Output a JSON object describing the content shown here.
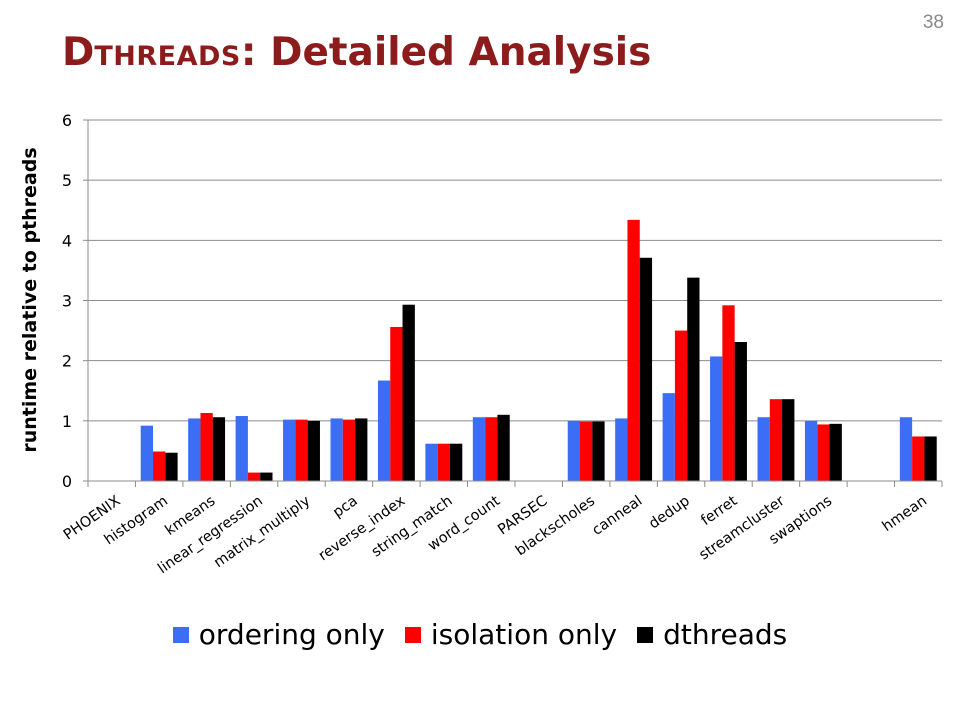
{
  "slide": {
    "number": "38",
    "title_first": "D",
    "title_smallcaps": "THREADS",
    "title_rest": ": Detailed Analysis"
  },
  "chart_data": {
    "type": "bar",
    "title": "",
    "xlabel": "",
    "ylabel": "runtime relative to pthreads",
    "ylim": [
      0,
      6
    ],
    "yticks": [
      0,
      1,
      2,
      3,
      4,
      5,
      6
    ],
    "grid": true,
    "legend_position": "bottom",
    "categories": [
      "PHOENIX",
      "histogram",
      "kmeans",
      "linear_regression",
      "matrix_multiply",
      "pca",
      "reverse_index",
      "string_match",
      "word_count",
      "PARSEC",
      "blackscholes",
      "canneal",
      "dedup",
      "ferret",
      "streamcluster",
      "swaptions",
      "",
      "hmean"
    ],
    "series": [
      {
        "name": "ordering only",
        "color": "#3b6ef5",
        "values": [
          null,
          0.92,
          1.04,
          1.08,
          1.02,
          1.04,
          1.67,
          0.62,
          1.06,
          null,
          1.0,
          1.04,
          1.46,
          2.07,
          1.06,
          1.0,
          null,
          1.06
        ]
      },
      {
        "name": "isolation only",
        "color": "#ff0000",
        "values": [
          null,
          0.49,
          1.13,
          0.14,
          1.02,
          1.02,
          2.56,
          0.62,
          1.06,
          null,
          0.99,
          4.34,
          2.5,
          2.92,
          1.36,
          0.94,
          null,
          0.74
        ]
      },
      {
        "name": "dthreads",
        "color": "#000000",
        "values": [
          null,
          0.47,
          1.06,
          0.14,
          1.0,
          1.04,
          2.93,
          0.62,
          1.1,
          null,
          0.99,
          3.71,
          3.38,
          2.31,
          1.36,
          0.95,
          null,
          0.74
        ]
      }
    ]
  }
}
